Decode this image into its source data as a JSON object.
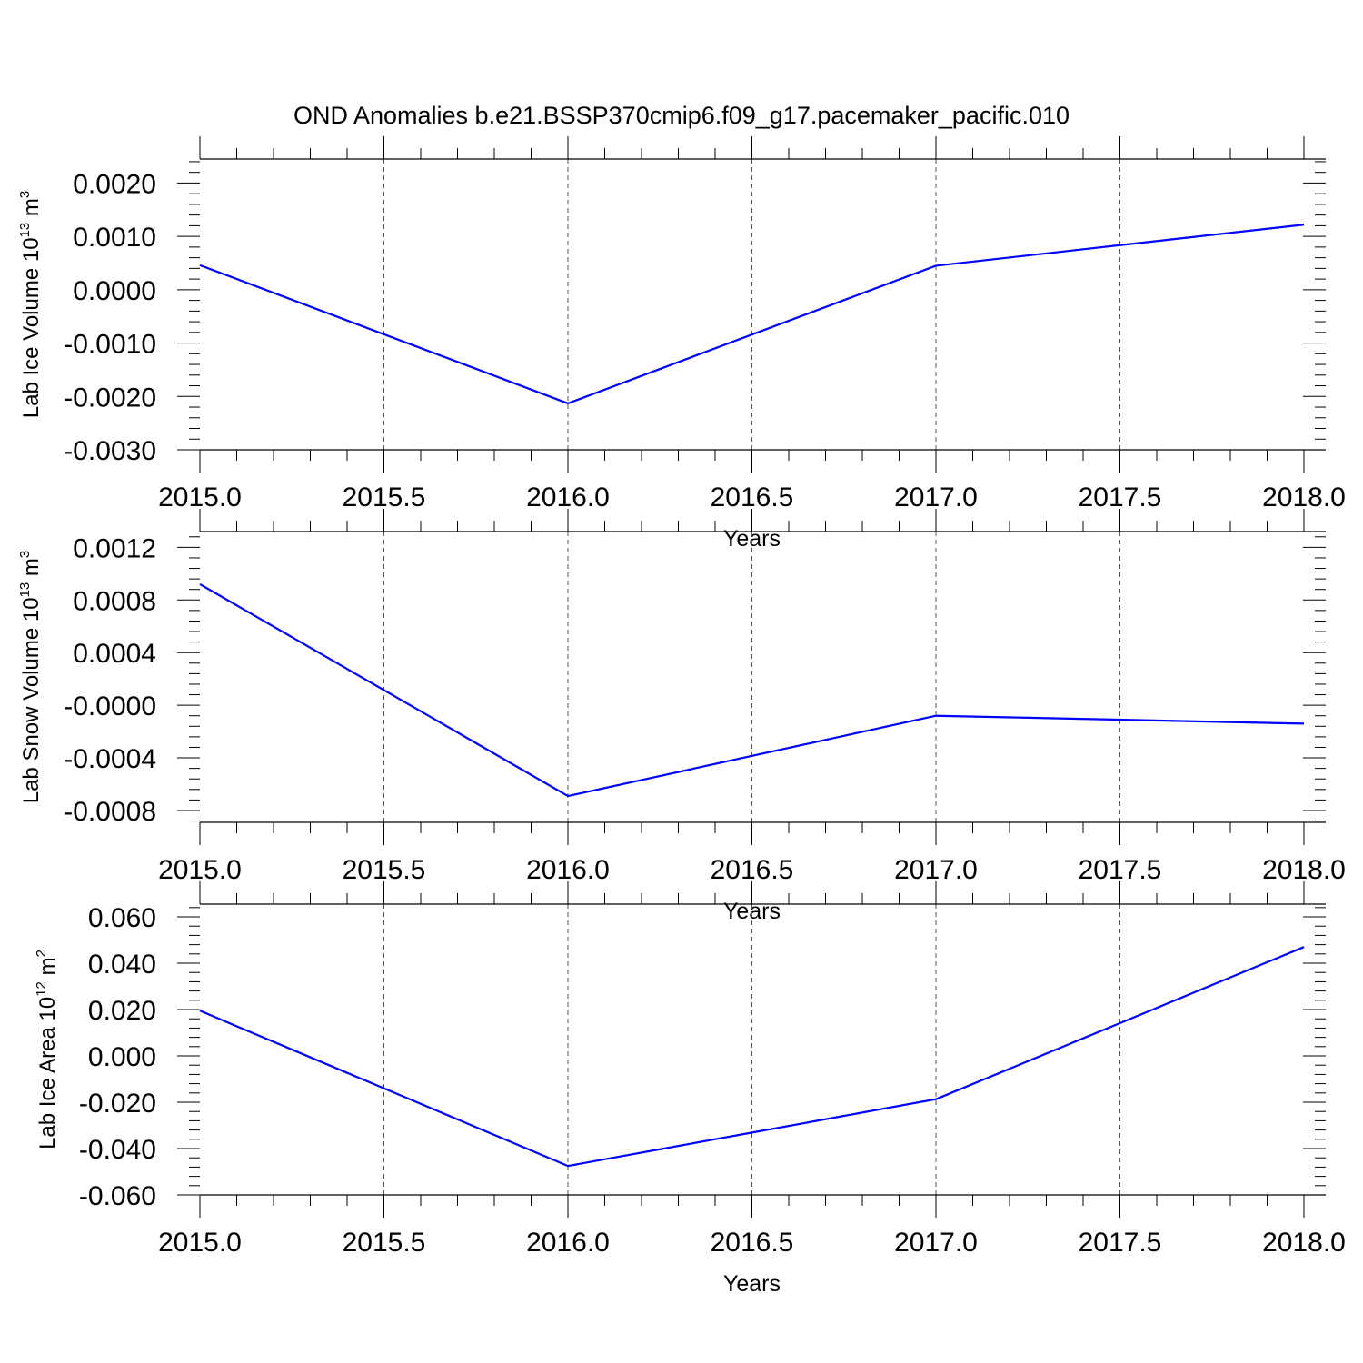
{
  "figure": {
    "title": "OND Anomalies b.e21.BSSP370cmip6.f09_g17.pacemaker_pacific.010",
    "line_color": "#0000ff"
  },
  "chart_data": [
    {
      "type": "line",
      "xlabel": "Years",
      "ylabel": "Lab Ice Volume 10",
      "ylabel_exp": "13",
      "ylabel_unit": " m",
      "ylabel_unit_exp": "3",
      "x": [
        2015,
        2016,
        2017,
        2018
      ],
      "series": [
        {
          "values": [
            0.00046,
            -0.00213,
            0.00045,
            0.00122
          ]
        }
      ],
      "xlim": [
        2015,
        2018
      ],
      "ylim": [
        -0.003,
        0.00245
      ],
      "xticks": [
        2015.0,
        2015.5,
        2016.0,
        2016.5,
        2017.0,
        2017.5,
        2018.0
      ],
      "xtick_labels": [
        "2015.0",
        "2015.5",
        "2016.0",
        "2016.5",
        "2017.0",
        "2017.5",
        "2018.0"
      ],
      "yticks": [
        -0.003,
        -0.002,
        -0.001,
        0.0,
        0.001,
        0.002
      ],
      "ytick_labels": [
        "-0.0030",
        "-0.0020",
        "-0.0010",
        "0.0000",
        "0.0010",
        "0.0020"
      ],
      "grid": "vertical dashed"
    },
    {
      "type": "line",
      "xlabel": "Years",
      "ylabel": "Lab Snow Volume 10",
      "ylabel_exp": "13",
      "ylabel_unit": " m",
      "ylabel_unit_exp": "3",
      "x": [
        2015,
        2016,
        2017,
        2018
      ],
      "series": [
        {
          "values": [
            0.00092,
            -0.00069,
            -8e-05,
            -0.00014
          ]
        }
      ],
      "xlim": [
        2015,
        2018
      ],
      "ylim": [
        -0.00089,
        0.00132
      ],
      "xticks": [
        2015.0,
        2015.5,
        2016.0,
        2016.5,
        2017.0,
        2017.5,
        2018.0
      ],
      "xtick_labels": [
        "2015.0",
        "2015.5",
        "2016.0",
        "2016.5",
        "2017.0",
        "2017.5",
        "2018.0"
      ],
      "yticks": [
        -0.0008,
        -0.0004,
        0.0,
        0.0004,
        0.0008,
        0.0012
      ],
      "ytick_labels": [
        "-0.0008",
        "-0.0004",
        "-0.0000",
        "0.0004",
        "0.0008",
        "0.0012"
      ],
      "grid": "vertical dashed"
    },
    {
      "type": "line",
      "xlabel": "Years",
      "ylabel": "Lab Ice Area 10",
      "ylabel_exp": "12",
      "ylabel_unit": " m",
      "ylabel_unit_exp": "2",
      "x": [
        2015,
        2016,
        2017,
        2018
      ],
      "series": [
        {
          "values": [
            0.0195,
            -0.0475,
            -0.0187,
            0.047
          ]
        }
      ],
      "xlim": [
        2015,
        2018
      ],
      "ylim": [
        -0.06,
        0.0655
      ],
      "xticks": [
        2015.0,
        2015.5,
        2016.0,
        2016.5,
        2017.0,
        2017.5,
        2018.0
      ],
      "xtick_labels": [
        "2015.0",
        "2015.5",
        "2016.0",
        "2016.5",
        "2017.0",
        "2017.5",
        "2018.0"
      ],
      "yticks": [
        -0.06,
        -0.04,
        -0.02,
        0.0,
        0.02,
        0.04,
        0.06
      ],
      "ytick_labels": [
        "-0.060",
        "-0.040",
        "-0.020",
        "0.000",
        "0.020",
        "0.040",
        "0.060"
      ],
      "grid": "vertical dashed"
    }
  ]
}
